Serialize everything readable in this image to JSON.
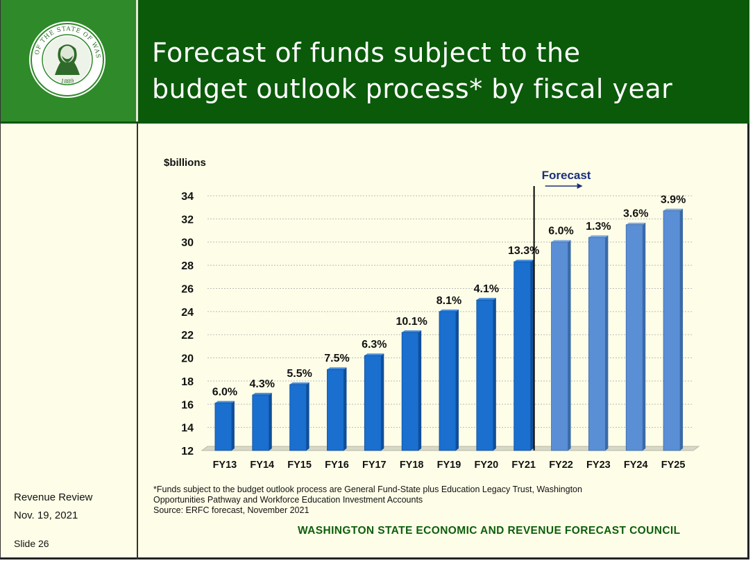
{
  "header": {
    "title_line1": "Forecast of funds subject to the",
    "title_line2": "budget outlook process* by fiscal year",
    "seal_text": "THE SEAL OF THE STATE OF WASHINGTON 1889"
  },
  "sidebar": {
    "event": "Revenue Review",
    "date": "Nov. 19, 2021",
    "slide": "Slide 26"
  },
  "footnote": {
    "line1": "*Funds subject to the budget outlook process are General Fund-State plus Education Legacy Trust, Washington",
    "line2": "Opportunities Pathway and Workforce Education Investment Accounts",
    "source": "Source: ERFC forecast, November 2021"
  },
  "council": "WASHINGTON STATE ECONOMIC AND REVENUE FORECAST COUNCIL",
  "colors": {
    "header_green": "#0a5a0a",
    "seal_green": "#2f8a2a",
    "actual_bar": "#1a6fcf",
    "forecast_bar": "#5a8fd6",
    "forecast_label": "#1a2f7a",
    "council_text": "#0d5e0d"
  },
  "chart_data": {
    "type": "bar",
    "ylabel": "$billions",
    "ylim": [
      12,
      34
    ],
    "yticks": [
      12,
      14,
      16,
      18,
      20,
      22,
      24,
      26,
      28,
      30,
      32,
      34
    ],
    "grid": true,
    "categories": [
      "FY13",
      "FY14",
      "FY15",
      "FY16",
      "FY17",
      "FY18",
      "FY19",
      "FY20",
      "FY21",
      "FY22",
      "FY23",
      "FY24",
      "FY25"
    ],
    "values": [
      16.1,
      16.8,
      17.7,
      19.0,
      20.2,
      22.2,
      24.0,
      25.0,
      28.3,
      30.0,
      30.4,
      31.5,
      32.7
    ],
    "labels": [
      "6.0%",
      "4.3%",
      "5.5%",
      "7.5%",
      "6.3%",
      "10.1%",
      "8.1%",
      "4.1%",
      "13.3%",
      "6.0%",
      "1.3%",
      "3.6%",
      "3.9%"
    ],
    "forecast_start_index": 9,
    "forecast_label": "Forecast"
  }
}
